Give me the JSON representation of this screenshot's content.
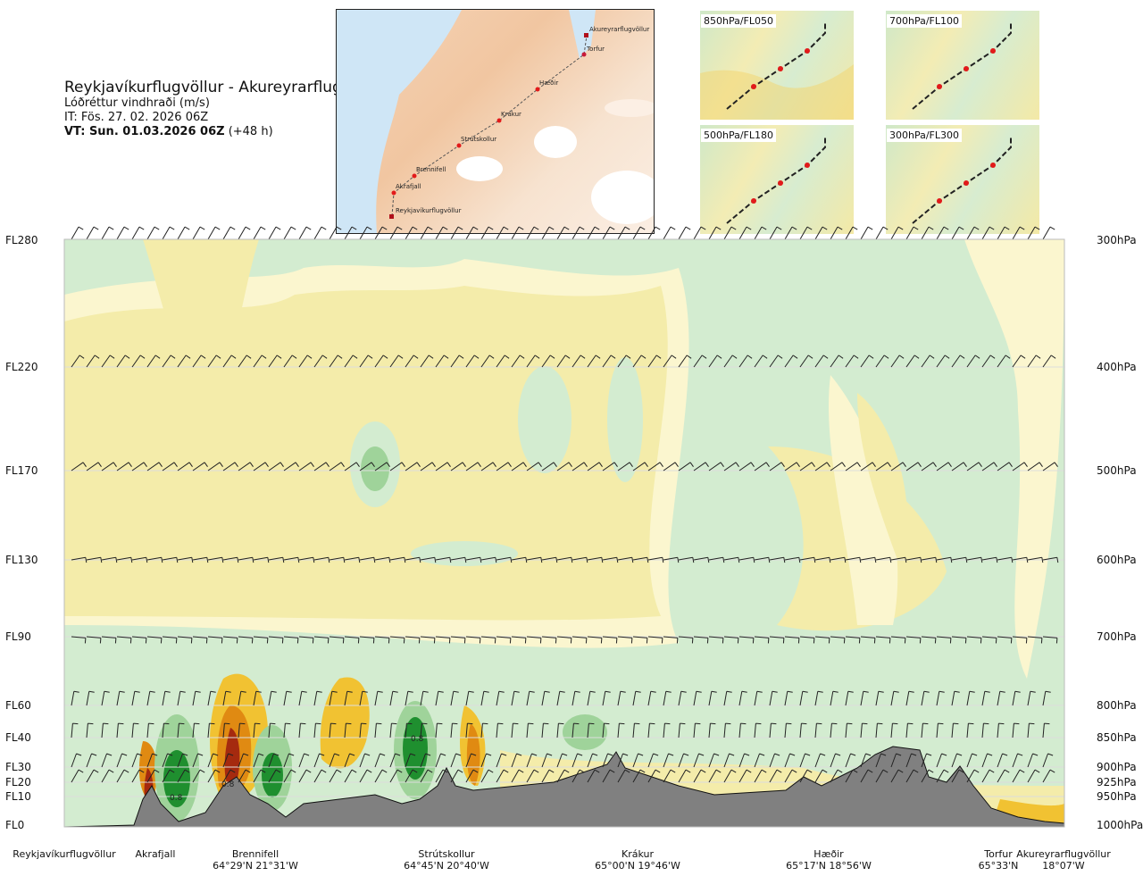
{
  "header": {
    "route": "Reykjavíkurflugvöllur - Akureyrarflugvöllur",
    "variable": "Lóðréttur vindhraði (m/s)",
    "it": "IT: Fös. 27. 02. 2026 06Z",
    "vt_bold": "VT: Sun. 01.03.2026 06Z",
    "vt_rest": " (+48 h)"
  },
  "main_map": {
    "points": [
      "Akureyrarflugvöllur",
      "Torfur",
      "Hæðir",
      "Krákur",
      "Strútskollur",
      "Brennifell",
      "Akrafjall",
      "Reykjavíkurflugvöllur"
    ]
  },
  "small_maps": [
    "850hPa/FL050",
    "700hPa/FL100",
    "500hPa/FL180",
    "300hPa/FL300"
  ],
  "colors": {
    "light_green": "#d3ecd0",
    "mid_green": "#9fd39a",
    "dark_green": "#1f8f2f",
    "pale_yellow": "#fbf6cf",
    "yellow": "#f4ecaa",
    "orange": "#f1c232",
    "dark_orange": "#e08a12",
    "red_brown": "#a52a0f",
    "terrain": "#808080"
  },
  "chart_data": {
    "type": "heatmap",
    "title": "Lóðréttur vindhraði (m/s)",
    "ylabel_left": [
      "FL280",
      "FL220",
      "FL170",
      "FL130",
      "FL90",
      "FL60",
      "FL40",
      "FL30",
      "FL20",
      "FL10",
      "FL0"
    ],
    "ylabel_right": [
      "300hPa",
      "400hPa",
      "500hPa",
      "600hPa",
      "700hPa",
      "800hPa",
      "850hPa",
      "900hPa",
      "925hPa",
      "950hPa",
      "1000hPa"
    ],
    "levels_fl": [
      280,
      220,
      170,
      130,
      90,
      60,
      40,
      30,
      20,
      10,
      0
    ],
    "x_locations": [
      {
        "name": "Reykjavíkurflugvöllur",
        "coord": ""
      },
      {
        "name": "Akrafjall",
        "coord": ""
      },
      {
        "name": "Brennifell",
        "coord": "64°29'N 21°31'W"
      },
      {
        "name": "Strútskollur",
        "coord": "64°45'N 20°40'W"
      },
      {
        "name": "Krákur",
        "coord": "65°00'N 19°46'W"
      },
      {
        "name": "Hæðir",
        "coord": "65°17'N 18°56'W"
      },
      {
        "name": "Torfur",
        "coord": "65°33'N"
      },
      {
        "name": "Akureyrarflugvöllur",
        "coord": "18°07'W"
      }
    ],
    "annotations": [
      "0.8",
      "0.8",
      "0.8"
    ]
  }
}
